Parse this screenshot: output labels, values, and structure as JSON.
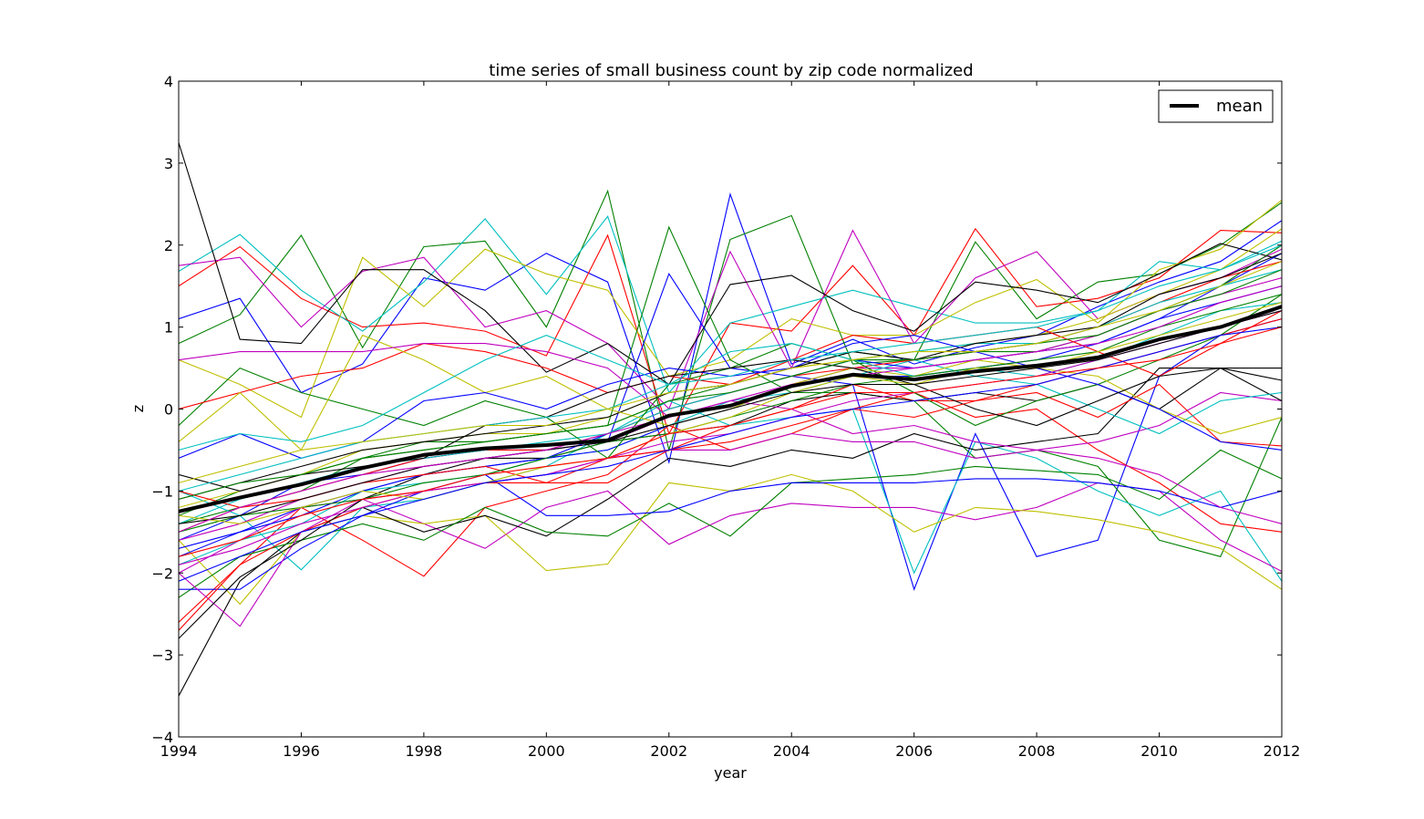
{
  "chart_data": {
    "type": "line",
    "title": "time series of small business count by zip code normalized",
    "xlabel": "year",
    "ylabel": "z",
    "xlim": [
      1994,
      2012
    ],
    "ylim": [
      -4,
      4
    ],
    "xticks": [
      "1994",
      "1996",
      "1998",
      "2000",
      "2002",
      "2004",
      "2006",
      "2008",
      "2010",
      "2012"
    ],
    "yticks": [
      "4",
      "3",
      "2",
      "1",
      "0",
      "−1",
      "−2",
      "−3",
      "−4"
    ],
    "grid": false,
    "legend": {
      "placement": "top-right",
      "entries": [
        "mean"
      ]
    },
    "series_colors": [
      "#0000ff",
      "#008000",
      "#ff0000",
      "#00bfbf",
      "#bf00bf",
      "#bfbf00",
      "#000000"
    ],
    "x": [
      1994,
      1995,
      1996,
      1997,
      1998,
      1999,
      2000,
      2001,
      2002,
      2003,
      2004,
      2005,
      2006,
      2007,
      2008,
      2009,
      2010,
      2011,
      2012
    ],
    "mean_series": {
      "name": "mean",
      "color": "#000000",
      "values": [
        -1.25,
        -1.08,
        -0.92,
        -0.72,
        -0.56,
        -0.48,
        -0.44,
        -0.38,
        -0.08,
        0.04,
        0.28,
        0.42,
        0.36,
        0.46,
        0.53,
        0.63,
        0.85,
        1.0,
        1.25
      ]
    },
    "series": [
      {
        "color": "#0000ff",
        "values": [
          1.1,
          1.35,
          0.2,
          0.55,
          1.6,
          1.45,
          1.9,
          1.55,
          -0.65,
          2.62,
          0.55,
          0.85,
          0.55,
          0.75,
          0.9,
          1.25,
          1.55,
          1.8,
          2.3
        ]
      },
      {
        "color": "#008000",
        "values": [
          0.8,
          1.15,
          2.12,
          0.75,
          1.98,
          2.05,
          1.0,
          2.66,
          -0.5,
          2.07,
          2.36,
          0.55,
          0.6,
          2.04,
          1.1,
          1.55,
          1.65,
          2.0,
          2.52
        ]
      },
      {
        "color": "#ff0000",
        "values": [
          1.5,
          1.98,
          1.35,
          1.0,
          1.05,
          0.95,
          0.65,
          2.12,
          -0.3,
          1.05,
          0.95,
          1.75,
          0.9,
          2.2,
          1.25,
          1.35,
          1.6,
          2.18,
          2.15
        ]
      },
      {
        "color": "#00bfbf",
        "values": [
          1.68,
          2.13,
          1.45,
          0.95,
          1.55,
          2.32,
          1.4,
          2.35,
          0.2,
          1.05,
          1.25,
          1.45,
          1.25,
          1.05,
          1.05,
          1.2,
          1.8,
          1.7,
          2.05
        ]
      },
      {
        "color": "#bf00bf",
        "values": [
          1.75,
          1.85,
          1.0,
          1.68,
          1.85,
          1.0,
          1.2,
          0.8,
          0.0,
          1.92,
          0.5,
          2.18,
          0.8,
          1.6,
          1.92,
          1.1,
          1.4,
          1.6,
          1.95
        ]
      },
      {
        "color": "#bfbf00",
        "values": [
          0.6,
          0.3,
          -0.1,
          1.85,
          1.25,
          1.95,
          1.65,
          1.45,
          0.4,
          0.6,
          1.1,
          0.9,
          0.9,
          1.3,
          1.58,
          1.05,
          1.7,
          1.95,
          2.55
        ]
      },
      {
        "color": "#000000",
        "values": [
          3.25,
          0.85,
          0.8,
          1.7,
          1.7,
          1.2,
          0.45,
          0.8,
          0.3,
          1.52,
          1.63,
          1.2,
          0.95,
          1.55,
          1.45,
          1.3,
          1.65,
          2.02,
          1.82
        ]
      },
      {
        "color": "#0000ff",
        "values": [
          -1.6,
          -1.3,
          -0.9,
          -0.8,
          -0.6,
          -0.5,
          -0.5,
          -0.4,
          1.65,
          0.5,
          0.4,
          0.3,
          -2.2,
          -0.3,
          -1.8,
          -1.6,
          0.4,
          0.9,
          1.1
        ]
      },
      {
        "color": "#008000",
        "values": [
          -1.4,
          -1.2,
          -1.0,
          -0.6,
          -0.4,
          -0.4,
          -0.3,
          -0.2,
          2.22,
          0.6,
          0.2,
          0.2,
          0.1,
          -0.6,
          -0.5,
          -0.7,
          -1.6,
          -1.8,
          -0.1
        ]
      },
      {
        "color": "#ff0000",
        "values": [
          -2.6,
          -1.9,
          -1.2,
          -1.6,
          -2.04,
          -1.2,
          -1.0,
          -0.8,
          -0.2,
          -0.5,
          -0.3,
          0.0,
          0.2,
          -0.1,
          0.0,
          -0.5,
          -0.9,
          -1.4,
          -1.5
        ]
      },
      {
        "color": "#00bfbf",
        "values": [
          -1.0,
          -1.3,
          -1.96,
          -1.2,
          -1.1,
          -0.9,
          -0.7,
          -0.3,
          0.1,
          -0.2,
          -0.1,
          0.0,
          -2.0,
          -0.4,
          -0.6,
          -1.0,
          -1.3,
          -1.0,
          -2.1
        ]
      },
      {
        "color": "#bf00bf",
        "values": [
          -2.0,
          -1.6,
          -1.2,
          -1.1,
          -1.4,
          -1.7,
          -1.2,
          -1.0,
          -1.65,
          -1.3,
          -1.15,
          -1.2,
          -1.2,
          -1.35,
          -1.2,
          -0.9,
          -1.0,
          -1.6,
          -1.98
        ]
      },
      {
        "color": "#bfbf00",
        "values": [
          -1.6,
          -2.38,
          -1.5,
          -1.3,
          -1.4,
          -1.3,
          -1.97,
          -1.89,
          -0.9,
          -1.0,
          -0.8,
          -1.0,
          -1.5,
          -1.2,
          -1.25,
          -1.35,
          -1.5,
          -1.7,
          -2.2
        ]
      },
      {
        "color": "#000000",
        "values": [
          -3.5,
          -2.1,
          -1.5,
          -1.2,
          -1.5,
          -1.3,
          -1.55,
          -1.1,
          -0.6,
          -0.7,
          -0.5,
          -0.6,
          -0.3,
          -0.5,
          -0.4,
          -0.3,
          0.5,
          0.5,
          0.35
        ]
      },
      {
        "color": "#008000",
        "values": [
          -2.3,
          -1.8,
          -1.6,
          -1.4,
          -1.6,
          -1.2,
          -1.5,
          -1.55,
          -1.15,
          -1.55,
          -0.9,
          -0.85,
          -0.8,
          -0.7,
          -0.75,
          -0.8,
          -1.1,
          -0.5,
          -0.85
        ]
      },
      {
        "color": "#0000ff",
        "values": [
          -2.2,
          -2.2,
          -1.7,
          -1.3,
          -1.0,
          -0.8,
          -1.3,
          -1.3,
          -1.25,
          -1.0,
          -0.9,
          -0.9,
          -0.9,
          -0.85,
          -0.85,
          -0.9,
          -1.0,
          -1.2,
          -1.0
        ]
      },
      {
        "color": "#bf00bf",
        "values": [
          -2.0,
          -2.65,
          -1.5,
          -1.1,
          -1.0,
          -0.9,
          -0.8,
          -0.6,
          -0.5,
          -0.5,
          -0.3,
          -0.4,
          -0.4,
          -0.6,
          -0.5,
          -0.4,
          -0.2,
          0.2,
          0.1
        ]
      },
      {
        "color": "#ff0000",
        "values": [
          -2.7,
          -1.9,
          -1.5,
          -1.2,
          -1.0,
          -0.9,
          -0.9,
          -0.9,
          -0.5,
          -0.2,
          0.0,
          0.3,
          0.1,
          0.1,
          0.2,
          -0.1,
          0.3,
          -0.4,
          -0.45
        ]
      },
      {
        "color": "#000000",
        "values": [
          -2.8,
          -2.05,
          -1.6,
          -1.1,
          -0.8,
          -0.6,
          -0.6,
          -0.4,
          -0.3,
          -0.2,
          0.1,
          0.2,
          0.1,
          0.2,
          0.1,
          0.3,
          0.0,
          0.5,
          0.1
        ]
      },
      {
        "color": "#00bfbf",
        "values": [
          -1.9,
          -1.6,
          -1.4,
          -1.0,
          -0.9,
          -0.8,
          -0.6,
          -0.5,
          -0.2,
          0.1,
          0.2,
          0.4,
          0.6,
          0.4,
          0.3,
          0.0,
          -0.3,
          0.1,
          0.2
        ]
      },
      {
        "color": "#0000ff",
        "values": [
          -1.8,
          -1.5,
          -1.3,
          -1.0,
          -0.8,
          -0.7,
          -0.6,
          -0.3,
          0.0,
          0.2,
          0.4,
          0.6,
          0.5,
          0.6,
          0.7,
          0.8,
          1.1,
          1.5,
          1.9
        ]
      },
      {
        "color": "#008000",
        "values": [
          -1.3,
          -1.0,
          -0.8,
          -0.6,
          -0.5,
          -0.4,
          -0.3,
          -0.2,
          0.1,
          0.3,
          0.5,
          0.7,
          0.6,
          0.7,
          0.7,
          0.9,
          1.2,
          1.5,
          2.0
        ]
      },
      {
        "color": "#ff0000",
        "values": [
          -1.5,
          -1.2,
          -1.0,
          -0.8,
          -0.6,
          -0.5,
          -0.5,
          -0.3,
          0.0,
          0.2,
          0.4,
          0.5,
          0.6,
          0.7,
          0.8,
          1.0,
          1.3,
          1.6,
          1.8
        ]
      },
      {
        "color": "#bfbf00",
        "values": [
          -1.2,
          -1.0,
          -0.8,
          -0.5,
          -0.4,
          -0.3,
          -0.3,
          -0.1,
          0.2,
          0.3,
          0.5,
          0.6,
          0.7,
          0.8,
          0.9,
          1.1,
          1.4,
          1.7,
          2.2
        ]
      },
      {
        "color": "#bf00bf",
        "values": [
          -1.6,
          -1.4,
          -1.1,
          -0.9,
          -0.7,
          -0.6,
          -0.5,
          -0.4,
          -0.1,
          0.1,
          0.3,
          0.5,
          0.5,
          0.6,
          0.7,
          0.9,
          1.2,
          1.4,
          1.6
        ]
      },
      {
        "color": "#00bfbf",
        "values": [
          -1.4,
          -1.1,
          -0.9,
          -0.7,
          -0.6,
          -0.5,
          -0.4,
          -0.3,
          0.0,
          0.2,
          0.4,
          0.6,
          0.7,
          0.8,
          0.8,
          1.0,
          1.3,
          1.5,
          1.7
        ]
      },
      {
        "color": "#000000",
        "values": [
          -1.1,
          -0.9,
          -0.7,
          -0.5,
          -0.4,
          -0.3,
          -0.2,
          -0.1,
          0.2,
          0.3,
          0.5,
          0.7,
          0.6,
          0.8,
          0.9,
          1.0,
          1.4,
          1.6,
          1.9
        ]
      },
      {
        "color": "#0000ff",
        "values": [
          -1.7,
          -1.5,
          -1.2,
          -1.0,
          -0.8,
          -0.7,
          -0.6,
          -0.5,
          -0.2,
          0.0,
          0.3,
          0.4,
          0.4,
          0.5,
          0.6,
          0.8,
          1.1,
          1.3,
          1.5
        ]
      },
      {
        "color": "#008000",
        "values": [
          -0.2,
          0.5,
          0.2,
          0.0,
          -0.2,
          0.1,
          -0.1,
          -0.6,
          0.3,
          0.5,
          0.8,
          0.6,
          0.2,
          -0.2,
          0.1,
          0.3,
          0.6,
          0.9,
          1.4
        ]
      },
      {
        "color": "#ff0000",
        "values": [
          0.0,
          0.2,
          0.4,
          0.5,
          0.8,
          0.7,
          0.5,
          0.2,
          0.4,
          0.3,
          0.6,
          0.9,
          0.8,
          0.9,
          1.0,
          0.7,
          0.4,
          0.8,
          1.2
        ]
      },
      {
        "color": "#bfbf00",
        "values": [
          -0.4,
          0.2,
          -0.5,
          0.9,
          0.6,
          0.2,
          0.4,
          0.0,
          -0.2,
          0.0,
          0.3,
          0.5,
          0.4,
          0.6,
          0.5,
          0.4,
          0.0,
          -0.3,
          -0.1
        ]
      },
      {
        "color": "#bf00bf",
        "values": [
          0.6,
          0.7,
          0.7,
          0.7,
          0.8,
          0.8,
          0.7,
          0.5,
          -0.1,
          0.1,
          0.0,
          -0.3,
          -0.2,
          -0.4,
          -0.5,
          -0.6,
          -0.8,
          -1.2,
          -1.4
        ]
      },
      {
        "color": "#0000ff",
        "values": [
          -0.6,
          -0.3,
          -0.6,
          -0.4,
          0.1,
          0.2,
          0.0,
          0.3,
          0.5,
          0.4,
          0.5,
          0.8,
          0.9,
          0.7,
          0.5,
          0.3,
          0.0,
          -0.4,
          -0.5
        ]
      },
      {
        "color": "#000000",
        "values": [
          -0.8,
          -1.0,
          -0.8,
          -0.7,
          -0.6,
          -0.2,
          -0.1,
          0.2,
          0.4,
          0.5,
          0.6,
          0.5,
          0.3,
          0.0,
          -0.2,
          0.1,
          0.4,
          0.5,
          0.5
        ]
      },
      {
        "color": "#00bfbf",
        "values": [
          -0.5,
          -0.3,
          -0.4,
          -0.2,
          0.2,
          0.6,
          0.9,
          0.6,
          0.3,
          0.7,
          0.8,
          0.6,
          0.4,
          0.5,
          0.4,
          0.6,
          0.9,
          1.2,
          1.3
        ]
      },
      {
        "color": "#ff0000",
        "values": [
          -1.0,
          -1.2,
          -1.1,
          -0.9,
          -0.8,
          -0.7,
          -0.9,
          -0.6,
          -0.5,
          -0.4,
          -0.2,
          0.0,
          -0.1,
          0.1,
          0.3,
          0.5,
          0.7,
          0.9,
          1.1
        ]
      },
      {
        "color": "#008000",
        "values": [
          -1.5,
          -1.3,
          -1.2,
          -1.1,
          -0.9,
          -0.8,
          -0.6,
          -0.4,
          -0.3,
          -0.1,
          0.1,
          0.3,
          0.4,
          0.5,
          0.6,
          0.7,
          1.0,
          1.2,
          1.4
        ]
      },
      {
        "color": "#bf00bf",
        "values": [
          -1.9,
          -1.7,
          -1.4,
          -1.2,
          -1.0,
          -0.9,
          -0.8,
          -0.6,
          -0.4,
          -0.3,
          -0.1,
          0.1,
          0.2,
          0.3,
          0.4,
          0.6,
          0.8,
          1.0,
          1.2
        ]
      },
      {
        "color": "#bfbf00",
        "values": [
          -1.3,
          -1.4,
          -1.2,
          -1.0,
          -1.1,
          -0.9,
          -0.7,
          -0.6,
          -0.3,
          -0.1,
          0.2,
          0.4,
          0.3,
          0.5,
          0.5,
          0.7,
          0.9,
          1.1,
          1.3
        ]
      },
      {
        "color": "#0000ff",
        "values": [
          -2.1,
          -1.8,
          -1.5,
          -1.3,
          -1.1,
          -0.9,
          -0.8,
          -0.7,
          -0.5,
          -0.3,
          -0.1,
          0.0,
          0.1,
          0.2,
          0.3,
          0.5,
          0.7,
          0.9,
          1.0
        ]
      },
      {
        "color": "#000000",
        "values": [
          -1.4,
          -1.3,
          -1.1,
          -0.9,
          -0.7,
          -0.6,
          -0.5,
          -0.4,
          -0.2,
          0.0,
          0.2,
          0.3,
          0.3,
          0.4,
          0.5,
          0.6,
          0.8,
          1.0,
          1.2
        ]
      },
      {
        "color": "#00bfbf",
        "values": [
          -1.0,
          -0.8,
          -0.6,
          -0.4,
          -0.3,
          -0.2,
          -0.1,
          0.0,
          0.3,
          0.4,
          0.6,
          0.7,
          0.8,
          0.9,
          1.0,
          1.2,
          1.5,
          1.7,
          2.0
        ]
      },
      {
        "color": "#ff0000",
        "values": [
          -1.8,
          -1.6,
          -1.3,
          -1.1,
          -1.0,
          -0.8,
          -0.7,
          -0.6,
          -0.3,
          -0.2,
          0.0,
          0.2,
          0.2,
          0.3,
          0.4,
          0.5,
          0.6,
          0.8,
          1.0
        ]
      },
      {
        "color": "#008000",
        "values": [
          -1.1,
          -0.9,
          -0.8,
          -0.6,
          -0.5,
          -0.4,
          -0.3,
          -0.2,
          0.1,
          0.2,
          0.4,
          0.6,
          0.6,
          0.7,
          0.8,
          0.9,
          1.2,
          1.4,
          1.7
        ]
      },
      {
        "color": "#bf00bf",
        "values": [
          -1.5,
          -1.2,
          -1.0,
          -0.8,
          -0.7,
          -0.6,
          -0.5,
          -0.3,
          -0.1,
          0.1,
          0.3,
          0.4,
          0.5,
          0.6,
          0.7,
          0.8,
          1.0,
          1.3,
          1.5
        ]
      },
      {
        "color": "#bfbf00",
        "values": [
          -0.9,
          -0.7,
          -0.5,
          -0.4,
          -0.3,
          -0.2,
          -0.2,
          0.0,
          0.2,
          0.3,
          0.5,
          0.6,
          0.7,
          0.7,
          0.8,
          1.0,
          1.2,
          1.5,
          1.8
        ]
      }
    ]
  }
}
